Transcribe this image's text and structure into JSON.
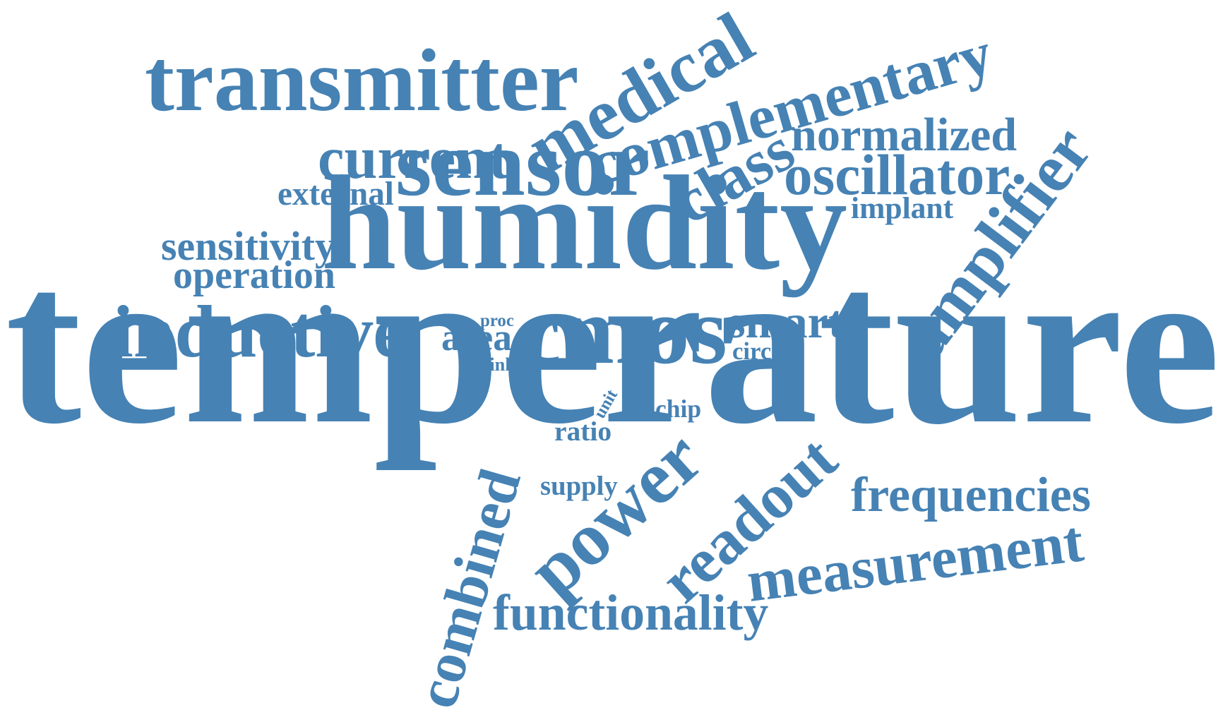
{
  "word_cloud": {
    "color": "#4682b4",
    "words": [
      {
        "id": "temperature",
        "text": "temperature",
        "rotated": false
      },
      {
        "id": "humidity",
        "text": "humidity",
        "rotated": false
      },
      {
        "id": "sensor",
        "text": "sensor",
        "rotated": false
      },
      {
        "id": "transmitter",
        "text": "transmitter",
        "rotated": false
      },
      {
        "id": "medical",
        "text": "medical",
        "rotated": true
      },
      {
        "id": "complementary",
        "text": "complementary",
        "rotated": true
      },
      {
        "id": "normalized",
        "text": "normalized",
        "rotated": false
      },
      {
        "id": "current",
        "text": "current",
        "rotated": false
      },
      {
        "id": "class",
        "text": "class",
        "rotated": true
      },
      {
        "id": "oscillator",
        "text": "oscillator",
        "rotated": false
      },
      {
        "id": "amplifier",
        "text": "amplifier",
        "rotated": true
      },
      {
        "id": "external",
        "text": "external",
        "rotated": false
      },
      {
        "id": "implant",
        "text": "implant",
        "rotated": false
      },
      {
        "id": "sensitivity",
        "text": "sensitivity",
        "rotated": false
      },
      {
        "id": "operation",
        "text": "operation",
        "rotated": false
      },
      {
        "id": "inductive",
        "text": "inductive",
        "rotated": false
      },
      {
        "id": "cmos",
        "text": "cmos",
        "rotated": false
      },
      {
        "id": "smart",
        "text": "smart",
        "rotated": false
      },
      {
        "id": "circuit",
        "text": "circuit",
        "rotated": false
      },
      {
        "id": "proc",
        "text": "proc",
        "rotated": false
      },
      {
        "id": "area",
        "text": "area",
        "rotated": false
      },
      {
        "id": "link",
        "text": "link",
        "rotated": false
      },
      {
        "id": "unit",
        "text": "unit",
        "rotated": true
      },
      {
        "id": "chip",
        "text": "chip",
        "rotated": false
      },
      {
        "id": "ratio",
        "text": "ratio",
        "rotated": false
      },
      {
        "id": "supply",
        "text": "supply",
        "rotated": false
      },
      {
        "id": "power",
        "text": "power",
        "rotated": true
      },
      {
        "id": "combined",
        "text": "combined",
        "rotated": true
      },
      {
        "id": "readout",
        "text": "readout",
        "rotated": true
      },
      {
        "id": "frequencies",
        "text": "frequencies",
        "rotated": false
      },
      {
        "id": "measurement",
        "text": "measurement",
        "rotated": true
      },
      {
        "id": "functionality",
        "text": "functionality",
        "rotated": false
      }
    ]
  }
}
